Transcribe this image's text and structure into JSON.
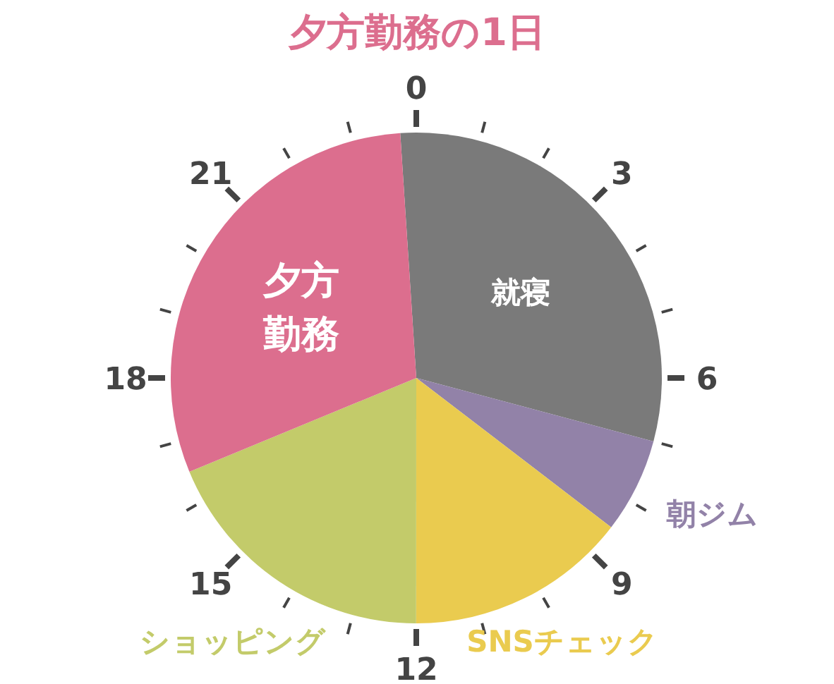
{
  "chart_data": {
    "type": "pie",
    "title": "夕方勤務の1日",
    "categories": [
      "就寝",
      "朝ジム",
      "SNSチェック",
      "ショッピング",
      "夕方勤務"
    ],
    "values": [
      30.2,
      6.25,
      14.6,
      18.75,
      30.2
    ],
    "colors": [
      "#7a7a7a",
      "#9282a8",
      "#eacb4f",
      "#c3cb6a",
      "#dc6e8e"
    ],
    "annotations": [
      "0",
      "3",
      "6",
      "9",
      "12",
      "15",
      "18",
      "21"
    ]
  }
}
